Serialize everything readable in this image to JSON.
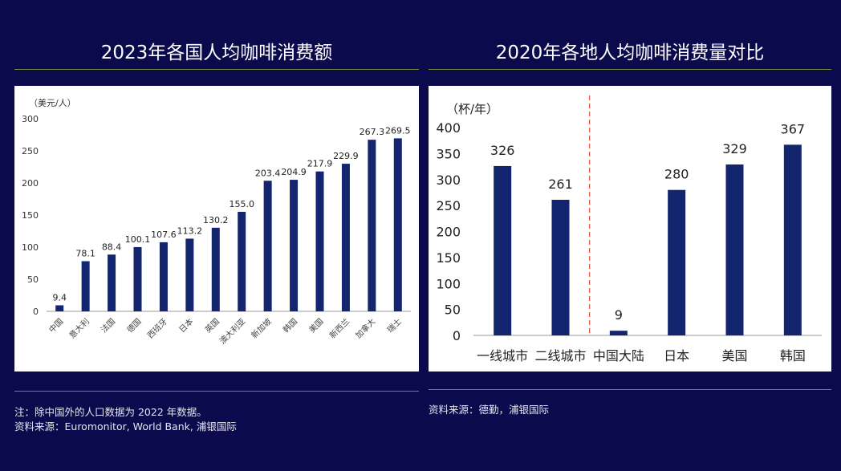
{
  "titles": {
    "left": "2023年各国人均咖啡消费额",
    "right": "2020年各地人均咖啡消费量对比"
  },
  "notes": {
    "left_note": "注：除中国外的人口数据为 2022 年数据。",
    "left_source": "资料来源：Euromonitor, World Bank, 浦银国际",
    "right_source": "资料来源：德勤，浦银国际"
  },
  "colors": {
    "background": "#0b0a4c",
    "bar": "#13256e",
    "divider": "#e04b3a",
    "rule": "#6f8a3a"
  },
  "chart_data": [
    {
      "type": "bar",
      "title": "2023年各国人均咖啡消费额",
      "ylabel": "（美元/人）",
      "categories": [
        "中国",
        "意大利",
        "法国",
        "德国",
        "西班牙",
        "日本",
        "英国",
        "澳大利亚",
        "新加坡",
        "韩国",
        "美国",
        "新西兰",
        "加拿大",
        "瑞士"
      ],
      "values": [
        9.4,
        78.1,
        88.4,
        100.1,
        107.6,
        113.2,
        130.2,
        155.0,
        203.4,
        204.9,
        217.9,
        229.9,
        267.3,
        269.5
      ],
      "value_labels": [
        "9.4",
        "78.1",
        "88.4",
        "100.1",
        "107.6",
        "113.2",
        "130.2",
        "155.0",
        "203.4",
        "204.9",
        "217.9",
        "229.9",
        "267.3",
        "269.5"
      ],
      "ylim": [
        0,
        300
      ],
      "yticks": [
        0,
        50,
        100,
        150,
        200,
        250,
        300
      ],
      "grid": false,
      "xtick_rotation": "diagonal"
    },
    {
      "type": "bar",
      "title": "2020年各地人均咖啡消费量对比",
      "ylabel": "（杯/年）",
      "categories": [
        "一线城市",
        "二线城市",
        "中国大陆",
        "日本",
        "美国",
        "韩国"
      ],
      "values": [
        326,
        261,
        9,
        280,
        329,
        367
      ],
      "value_labels": [
        "326",
        "261",
        "9",
        "280",
        "329",
        "367"
      ],
      "ylim": [
        0,
        400
      ],
      "yticks": [
        0,
        50,
        100,
        150,
        200,
        250,
        300,
        350,
        400
      ],
      "grid": false,
      "divider_after_index": 1
    }
  ]
}
